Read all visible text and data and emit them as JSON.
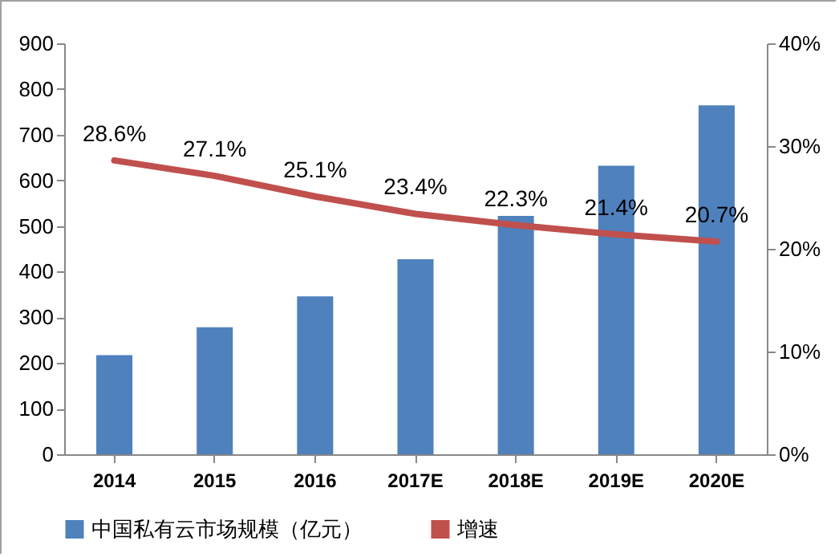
{
  "chart_data": {
    "type": "bar",
    "categories": [
      "2014",
      "2015",
      "2016",
      "2017E",
      "2018E",
      "2019E",
      "2020E"
    ],
    "series": [
      {
        "name": "中国私有云市场规模（亿元）",
        "color": "#4f81bd",
        "values": [
          217,
          278,
          346,
          427,
          522,
          632,
          764
        ]
      },
      {
        "name": "增速",
        "type": "line",
        "axis": "y2",
        "color": "#c0504d",
        "values": [
          28.6,
          27.1,
          25.1,
          23.4,
          22.3,
          21.4,
          20.7
        ],
        "value_labels": [
          "28.6%",
          "27.1%",
          "25.1%",
          "23.4%",
          "22.3%",
          "21.4%",
          "20.7%"
        ]
      }
    ],
    "ylim": [
      0,
      900
    ],
    "yticks": [
      0,
      100,
      200,
      300,
      400,
      500,
      600,
      700,
      800,
      900
    ],
    "y2lim": [
      0,
      40
    ],
    "y2ticks": [
      {
        "value": 0,
        "label": "0%"
      },
      {
        "value": 10,
        "label": "10%"
      },
      {
        "value": 20,
        "label": "20%"
      },
      {
        "value": 30,
        "label": "30%"
      },
      {
        "value": 40,
        "label": "40%"
      }
    ],
    "grid": false,
    "legend": "bottom",
    "marker": "none"
  }
}
